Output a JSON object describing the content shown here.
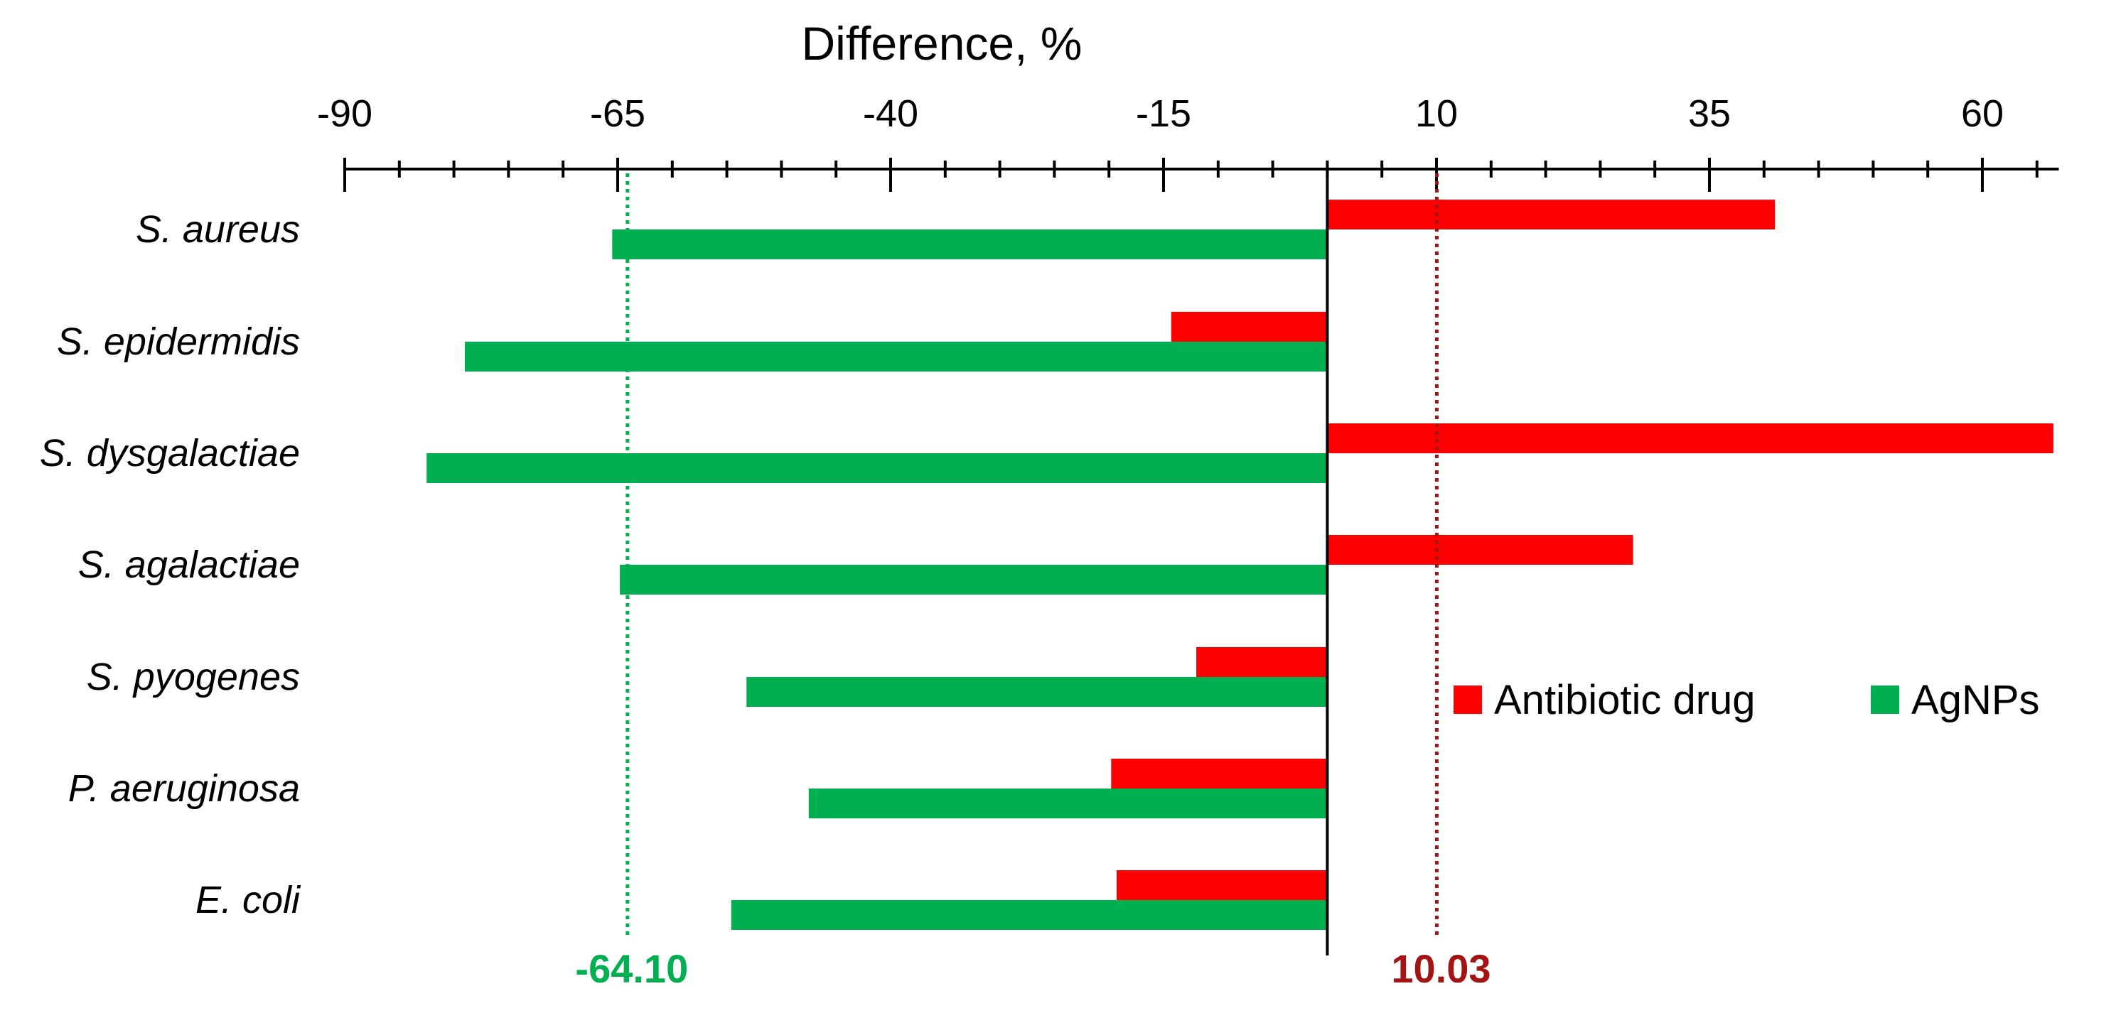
{
  "chart_data": {
    "type": "bar",
    "orientation": "horizontal",
    "xlabel": "Difference, %",
    "xlim": [
      -90,
      67
    ],
    "x_ticks": [
      -90,
      -65,
      -40,
      -15,
      10,
      35,
      60
    ],
    "x_minor_step": 5,
    "categories": [
      "S. aureus",
      "S. epidermidis",
      "S. dysgalactiae",
      "S. agalactiae",
      "S. pyogenes",
      "P. aeruginosa",
      "E. coli"
    ],
    "series": [
      {
        "name": "Antibiotic drug",
        "color": "#ff0000",
        "values": [
          41,
          -14.3,
          66.5,
          28,
          -12,
          -19.8,
          -19.3
        ]
      },
      {
        "name": "AgNPs",
        "color": "#00b050",
        "values": [
          -65.5,
          -79,
          -82.5,
          -64.8,
          -53.2,
          -47.5,
          -54.6
        ]
      }
    ],
    "reference_lines": [
      {
        "value": -64.1,
        "label": "-64.10",
        "color": "#00b050",
        "style": "dotted"
      },
      {
        "value": 10.03,
        "label": "10.03",
        "color": "#a31515",
        "style": "dotted"
      }
    ],
    "legend": {
      "position": "right",
      "entries": [
        "Antibiotic drug",
        "AgNPs"
      ]
    },
    "grid": false
  }
}
